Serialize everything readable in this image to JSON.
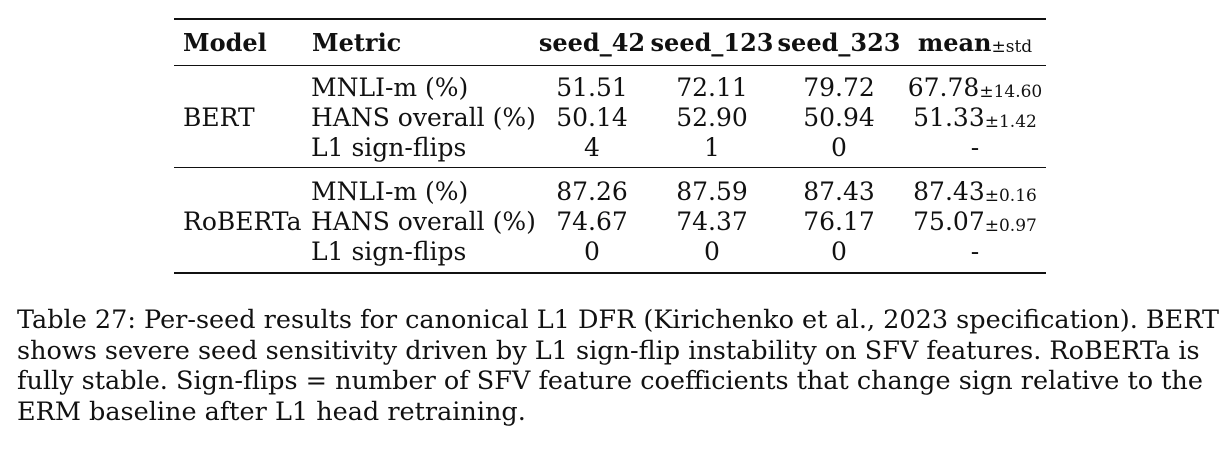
{
  "table": {
    "headers": {
      "model": "Model",
      "metric": "Metric",
      "seed_42": "seed_42",
      "seed_123": "seed_123",
      "seed_323": "seed_323",
      "mean": "mean",
      "pm_std": "±std"
    },
    "groups": [
      {
        "model": "BERT",
        "rows": [
          {
            "metric": "MNLI-m (%)",
            "seed_42": "51.51",
            "seed_123": "72.11",
            "seed_323": "79.72",
            "mean": "67.78",
            "std": "±14.60"
          },
          {
            "metric": "HANS overall (%)",
            "seed_42": "50.14",
            "seed_123": "52.90",
            "seed_323": "50.94",
            "mean": "51.33",
            "std": "±1.42"
          },
          {
            "metric": "L1 sign-flips",
            "seed_42": "4",
            "seed_123": "1",
            "seed_323": "0",
            "mean": "-",
            "std": ""
          }
        ]
      },
      {
        "model": "RoBERTa",
        "rows": [
          {
            "metric": "MNLI-m (%)",
            "seed_42": "87.26",
            "seed_123": "87.59",
            "seed_323": "87.43",
            "mean": "87.43",
            "std": "±0.16"
          },
          {
            "metric": "HANS overall (%)",
            "seed_42": "74.67",
            "seed_123": "74.37",
            "seed_323": "76.17",
            "mean": "75.07",
            "std": "±0.97"
          },
          {
            "metric": "L1 sign-flips",
            "seed_42": "0",
            "seed_123": "0",
            "seed_323": "0",
            "mean": "-",
            "std": ""
          }
        ]
      }
    ]
  },
  "caption": {
    "lines": [
      "Table 27: Per-seed results for canonical L1 DFR (Kirichenko et al., 2023 specification). BERT",
      "shows severe seed sensitivity driven by L1 sign-flip instability on SFV features. RoBERTa is",
      "fully stable. Sign-flips = number of SFV feature coefficients that change sign relative to the",
      "ERM baseline after L1 head retraining."
    ]
  }
}
